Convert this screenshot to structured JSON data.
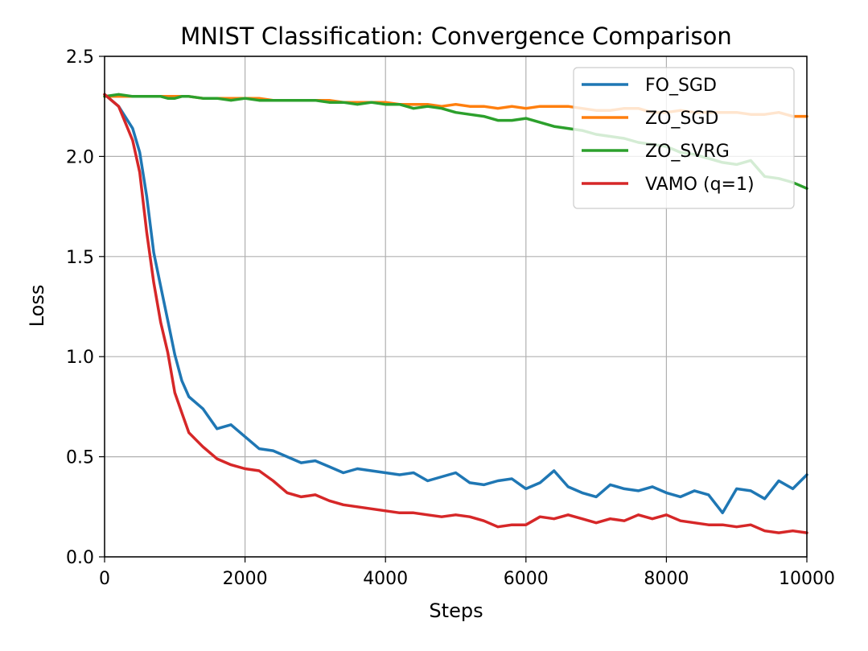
{
  "chart_data": {
    "type": "line",
    "title": "MNIST Classification: Convergence Comparison",
    "xlabel": "Steps",
    "ylabel": "Loss",
    "xlim": [
      0,
      10000
    ],
    "ylim": [
      0,
      2.5
    ],
    "xticks": [
      0,
      2000,
      4000,
      6000,
      8000,
      10000
    ],
    "xtick_labels": [
      "0",
      "2000",
      "4000",
      "6000",
      "8000",
      "10000"
    ],
    "yticks": [
      0,
      0.5,
      1.0,
      1.5,
      2.0,
      2.5
    ],
    "ytick_labels": [
      "0.0",
      "0.5",
      "1.0",
      "1.5",
      "2.0",
      "2.5"
    ],
    "grid": true,
    "legend_position": "top-right",
    "x": [
      0,
      200,
      400,
      500,
      600,
      700,
      800,
      900,
      1000,
      1100,
      1200,
      1400,
      1600,
      1800,
      2000,
      2200,
      2400,
      2600,
      2800,
      3000,
      3200,
      3400,
      3600,
      3800,
      4000,
      4200,
      4400,
      4600,
      4800,
      5000,
      5200,
      5400,
      5600,
      5800,
      6000,
      6200,
      6400,
      6600,
      6800,
      7000,
      7200,
      7400,
      7600,
      7800,
      8000,
      8200,
      8400,
      8600,
      8800,
      9000,
      9200,
      9400,
      9600,
      9800,
      10000
    ],
    "series": [
      {
        "name": "FO_SGD",
        "color": "#1f77b4",
        "values": [
          2.31,
          2.25,
          2.14,
          2.02,
          1.8,
          1.52,
          1.35,
          1.18,
          1.01,
          0.88,
          0.8,
          0.74,
          0.64,
          0.66,
          0.6,
          0.54,
          0.53,
          0.5,
          0.47,
          0.48,
          0.45,
          0.42,
          0.44,
          0.43,
          0.42,
          0.41,
          0.42,
          0.38,
          0.4,
          0.42,
          0.37,
          0.36,
          0.38,
          0.39,
          0.34,
          0.37,
          0.43,
          0.35,
          0.32,
          0.3,
          0.36,
          0.34,
          0.33,
          0.35,
          0.32,
          0.3,
          0.33,
          0.31,
          0.22,
          0.34,
          0.33,
          0.29,
          0.38,
          0.34,
          0.41
        ]
      },
      {
        "name": "ZO_SGD",
        "color": "#ff7f0e",
        "values": [
          2.3,
          2.3,
          2.3,
          2.3,
          2.3,
          2.3,
          2.3,
          2.3,
          2.3,
          2.3,
          2.3,
          2.29,
          2.29,
          2.29,
          2.29,
          2.29,
          2.28,
          2.28,
          2.28,
          2.28,
          2.28,
          2.27,
          2.27,
          2.27,
          2.27,
          2.26,
          2.26,
          2.26,
          2.25,
          2.26,
          2.25,
          2.25,
          2.24,
          2.25,
          2.24,
          2.25,
          2.25,
          2.25,
          2.24,
          2.23,
          2.23,
          2.24,
          2.24,
          2.22,
          2.22,
          2.23,
          2.22,
          2.22,
          2.22,
          2.22,
          2.21,
          2.21,
          2.22,
          2.2,
          2.2
        ]
      },
      {
        "name": "ZO_SVRG",
        "color": "#2ca02c",
        "values": [
          2.3,
          2.31,
          2.3,
          2.3,
          2.3,
          2.3,
          2.3,
          2.29,
          2.29,
          2.3,
          2.3,
          2.29,
          2.29,
          2.28,
          2.29,
          2.28,
          2.28,
          2.28,
          2.28,
          2.28,
          2.27,
          2.27,
          2.26,
          2.27,
          2.26,
          2.26,
          2.24,
          2.25,
          2.24,
          2.22,
          2.21,
          2.2,
          2.18,
          2.18,
          2.19,
          2.17,
          2.15,
          2.14,
          2.13,
          2.11,
          2.1,
          2.09,
          2.07,
          2.06,
          2.05,
          2.02,
          2.01,
          1.99,
          1.97,
          1.96,
          1.98,
          1.9,
          1.89,
          1.87,
          1.84
        ]
      },
      {
        "name": "VAMO (q=1)",
        "color": "#d62728",
        "values": [
          2.31,
          2.25,
          2.08,
          1.92,
          1.62,
          1.37,
          1.17,
          1.02,
          0.82,
          0.72,
          0.62,
          0.55,
          0.49,
          0.46,
          0.44,
          0.43,
          0.38,
          0.32,
          0.3,
          0.31,
          0.28,
          0.26,
          0.25,
          0.24,
          0.23,
          0.22,
          0.22,
          0.21,
          0.2,
          0.21,
          0.2,
          0.18,
          0.15,
          0.16,
          0.16,
          0.2,
          0.19,
          0.21,
          0.19,
          0.17,
          0.19,
          0.18,
          0.21,
          0.19,
          0.21,
          0.18,
          0.17,
          0.16,
          0.16,
          0.15,
          0.16,
          0.13,
          0.12,
          0.13,
          0.12
        ]
      }
    ]
  }
}
